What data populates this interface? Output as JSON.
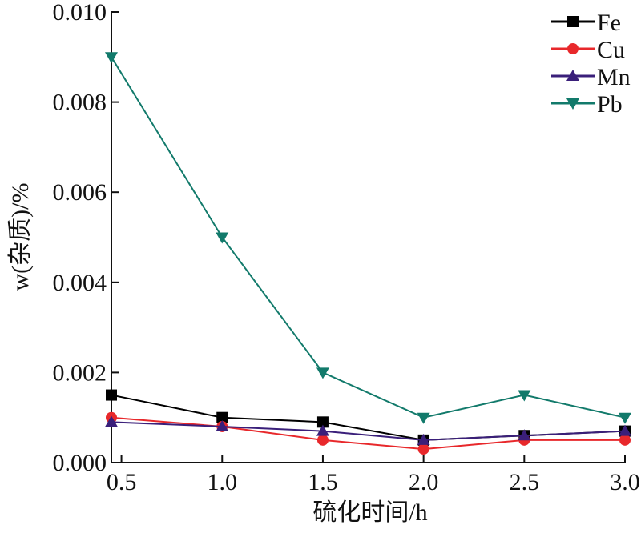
{
  "chart_data": {
    "type": "line",
    "xlabel": "硫化时间/h",
    "ylabel": "w(杂质)/%",
    "xlim": [
      0.45,
      3.0
    ],
    "ylim": [
      0.0,
      0.01
    ],
    "x_ticks": [
      "0.5",
      "1.0",
      "1.5",
      "2.0",
      "2.5",
      "3.0"
    ],
    "y_ticks": [
      "0.000",
      "0.002",
      "0.004",
      "0.006",
      "0.008",
      "0.010"
    ],
    "grid": false,
    "legend_position": "top-right",
    "x": [
      0.45,
      1.0,
      1.5,
      2.0,
      2.5,
      3.0
    ],
    "series": [
      {
        "name": "Fe",
        "color": "#000000",
        "marker": "square",
        "values": [
          0.0015,
          0.001,
          0.0009,
          0.0005,
          0.0006,
          0.0007
        ]
      },
      {
        "name": "Cu",
        "color": "#e8282b",
        "marker": "circle",
        "values": [
          0.001,
          0.0008,
          0.0005,
          0.0003,
          0.0005,
          0.0005
        ]
      },
      {
        "name": "Mn",
        "color": "#3a1f7a",
        "marker": "triangle-up",
        "values": [
          0.0009,
          0.0008,
          0.0007,
          0.0005,
          0.0006,
          0.0007
        ]
      },
      {
        "name": "Pb",
        "color": "#127a6b",
        "marker": "triangle-down",
        "values": [
          0.009,
          0.005,
          0.002,
          0.001,
          0.0015,
          0.001
        ]
      }
    ]
  }
}
